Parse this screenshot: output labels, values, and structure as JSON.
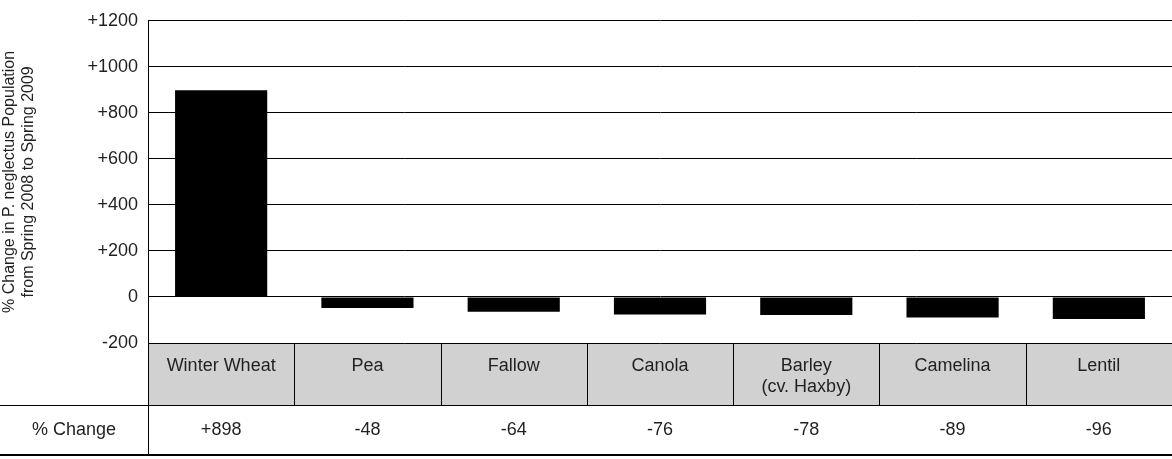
{
  "chart_data": {
    "type": "bar",
    "y_label": [
      "% Change in P. neglectus Population",
      "from Spring 2008 to Spring 2009"
    ],
    "categories": [
      "Winter Wheat",
      "Pea",
      "Fallow",
      "Canola",
      "Barley (cv. Haxby)",
      "Camelina",
      "Lentil"
    ],
    "values": [
      898,
      -48,
      -64,
      -76,
      -78,
      -89,
      -96
    ],
    "value_labels": [
      "+898",
      "-48",
      "-64",
      "-76",
      "-78",
      "-89",
      "-96"
    ],
    "value_label_title": "% Change",
    "data_labels": true,
    "color": "#000000",
    "ylim": [
      -200,
      1200
    ],
    "yticks": [
      -200,
      0,
      {
        "value": 200,
        "label": "+200"
      },
      {
        "value": 400,
        "label": "+400"
      },
      {
        "value": 600,
        "label": "+600"
      },
      {
        "value": 800,
        "label": "+800"
      },
      {
        "value": 1000,
        "label": "+1000"
      },
      {
        "value": 1200,
        "label": "+1200"
      }
    ],
    "grid": true
  }
}
